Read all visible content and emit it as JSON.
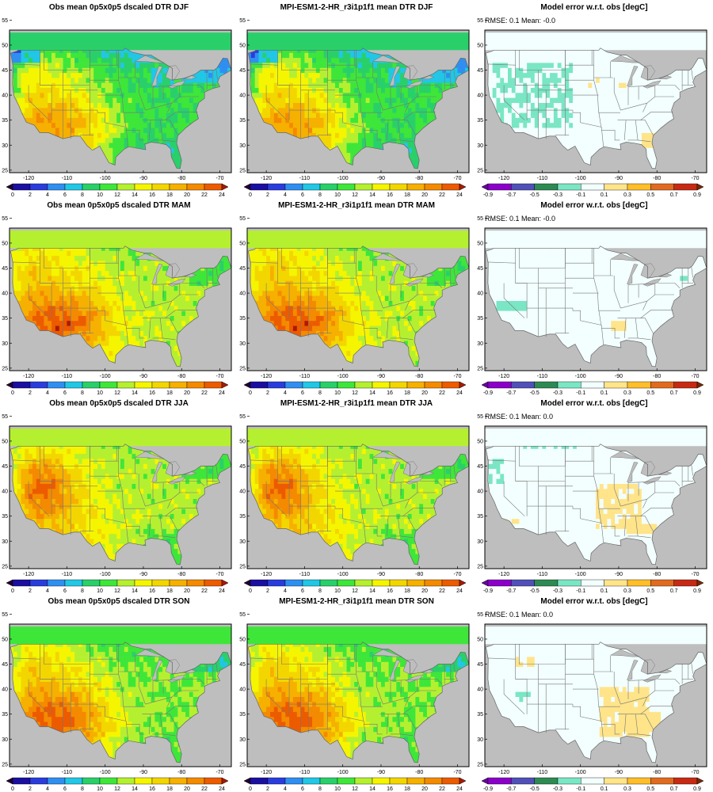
{
  "model": "MPI-ESM1-2-HR_r3i1p1f1",
  "variable": "DTR",
  "seasons": [
    "DJF",
    "MAM",
    "JJA",
    "SON"
  ],
  "columns": [
    {
      "kind": "obs",
      "title_template": "Obs mean 0p5x0p5 dscaled DTR {season}"
    },
    {
      "kind": "model",
      "title_template": "MPI-ESM1-2-HR_r3i1p1f1 mean DTR {season}"
    },
    {
      "kind": "error",
      "title_template": "Model error w.r.t. obs [degC]"
    }
  ],
  "rows": [
    {
      "season": "DJF",
      "obs_title": "Obs mean 0p5x0p5 dscaled DTR DJF",
      "model_title": "MPI-ESM1-2-HR_r3i1p1f1 mean DTR DJF",
      "error_title": "Model error w.r.t. obs [degC]",
      "rmse": "0.1",
      "mean": "-0.0",
      "stats_text": "RMSE: 0.1  Mean: -0.0"
    },
    {
      "season": "MAM",
      "obs_title": "Obs mean 0p5x0p5 dscaled DTR MAM",
      "model_title": "MPI-ESM1-2-HR_r3i1p1f1 mean DTR MAM",
      "error_title": "Model error w.r.t. obs [degC]",
      "rmse": "0.1",
      "mean": "-0.0",
      "stats_text": "RMSE: 0.1  Mean: -0.0"
    },
    {
      "season": "JJA",
      "obs_title": "Obs mean 0p5x0p5 dscaled DTR JJA",
      "model_title": "MPI-ESM1-2-HR_r3i1p1f1 mean DTR JJA",
      "error_title": "Model error w.r.t. obs [degC]",
      "rmse": "0.1",
      "mean": "0.0",
      "stats_text": "RMSE: 0.1  Mean: 0.0"
    },
    {
      "season": "SON",
      "obs_title": "Obs mean 0p5x0p5 dscaled DTR SON",
      "model_title": "MPI-ESM1-2-HR_r3i1p1f1 mean DTR SON",
      "error_title": "Model error w.r.t. obs [degC]",
      "rmse": "0.1",
      "mean": "0.0",
      "stats_text": "RMSE: 0.1  Mean: 0.0"
    }
  ],
  "map_axes": {
    "lon_range": [
      -125,
      -67
    ],
    "lat_range": [
      24.5,
      53
    ],
    "lon_ticks": [
      "-120",
      "-110",
      "-100",
      "-90",
      "-80",
      "-70"
    ],
    "lon_tick_values": [
      -120,
      -110,
      -100,
      -90,
      -80,
      -70
    ],
    "lat_ticks": [
      "25",
      "30",
      "35",
      "40",
      "45",
      "50",
      "55"
    ],
    "lat_tick_values": [
      25,
      30,
      35,
      40,
      45,
      50,
      55
    ]
  },
  "value_colorbar": {
    "labels": [
      "0",
      "2",
      "4",
      "6",
      "8",
      "10",
      "12",
      "14",
      "16",
      "18",
      "20",
      "22",
      "24"
    ],
    "levels": [
      0,
      2,
      4,
      6,
      8,
      10,
      12,
      14,
      16,
      18,
      20,
      22,
      24
    ],
    "colors": [
      "#220033",
      "#1a0fa0",
      "#2a3cdc",
      "#2f8ff0",
      "#21c7e5",
      "#29d06a",
      "#3ee63a",
      "#b5f030",
      "#f5f500",
      "#f3d600",
      "#f6b000",
      "#f48a00",
      "#ec5b00",
      "#aa1a00"
    ],
    "ocean_color": "#bebebe"
  },
  "error_colorbar": {
    "labels": [
      "-0.9",
      "-0.7",
      "-0.5",
      "-0.3",
      "-0.1",
      "0.1",
      "0.3",
      "0.5",
      "0.7",
      "0.9"
    ],
    "levels": [
      -0.9,
      -0.7,
      -0.5,
      -0.3,
      -0.1,
      0.1,
      0.3,
      0.5,
      0.7,
      0.9
    ],
    "colors": [
      "#6a00a0",
      "#8a00c8",
      "#5050b8",
      "#2e8a52",
      "#7ae6c4",
      "#f2fffe",
      "#ffe48a",
      "#ffbe2a",
      "#e06b20",
      "#c62a14",
      "#7a2a00"
    ],
    "ocean_color": "#bebebe"
  }
}
